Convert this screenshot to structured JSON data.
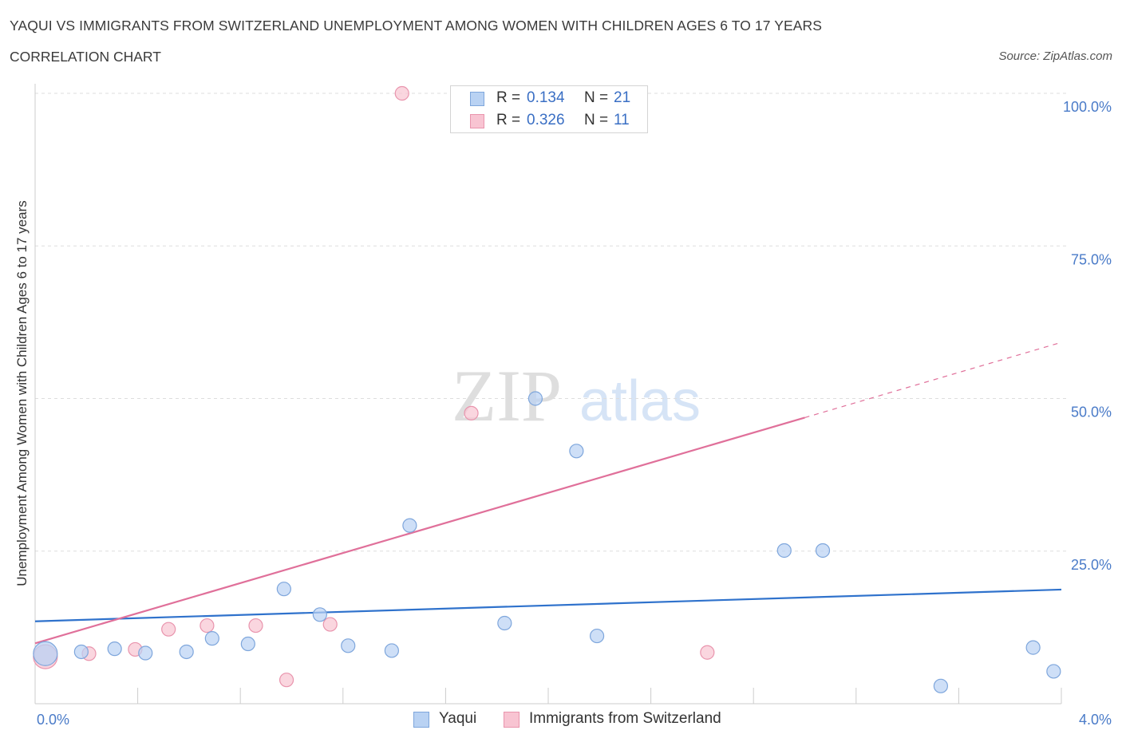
{
  "header": {
    "title": "YAQUI VS IMMIGRANTS FROM SWITZERLAND UNEMPLOYMENT AMONG WOMEN WITH CHILDREN AGES 6 TO 17 YEARS",
    "subtitle": "CORRELATION CHART",
    "source": "Source: ZipAtlas.com"
  },
  "watermark": {
    "zip": "ZIP",
    "atlas": "atlas"
  },
  "stats": [
    {
      "r_label": "R =",
      "r_value": "0.134",
      "n_label": "N =",
      "n_value": "21"
    },
    {
      "r_label": "R =",
      "r_value": "0.326",
      "n_label": "N =",
      "n_value": "11"
    }
  ],
  "colors": {
    "yaqui_fill": "#b9d2f3",
    "yaqui_stroke": "#7ea6dc",
    "yaqui_line": "#2f72cc",
    "swiss_fill": "#f8c4d2",
    "swiss_stroke": "#e994ad",
    "swiss_line": "#e0709a",
    "grid": "#dddddd",
    "axis_label": "#4a7bc8"
  },
  "chart_data": {
    "type": "scatter",
    "title": "YAQUI VS IMMIGRANTS FROM SWITZERLAND UNEMPLOYMENT AMONG WOMEN WITH CHILDREN AGES 6 TO 17 YEARS",
    "subtitle": "CORRELATION CHART",
    "xlabel": "",
    "ylabel": "Unemployment Among Women with Children Ages 6 to 17 years",
    "xlim": [
      0,
      4
    ],
    "ylim": [
      0,
      100
    ],
    "x_tick_labels": [
      "0.0%",
      "4.0%"
    ],
    "y_ticks": [
      25,
      50,
      75,
      100
    ],
    "y_tick_labels": [
      "25.0%",
      "50.0%",
      "75.0%",
      "100.0%"
    ],
    "grid": true,
    "legend_position": "bottom-center",
    "series": [
      {
        "name": "Yaqui",
        "r": 0.134,
        "n": 21,
        "points": [
          [
            0.04,
            8.2,
            "large"
          ],
          [
            0.18,
            8.5
          ],
          [
            0.31,
            9.0
          ],
          [
            0.43,
            8.3
          ],
          [
            0.59,
            8.5
          ],
          [
            0.69,
            10.7
          ],
          [
            0.83,
            9.8
          ],
          [
            0.97,
            18.8
          ],
          [
            1.11,
            14.6
          ],
          [
            1.22,
            9.5
          ],
          [
            1.39,
            8.7
          ],
          [
            1.46,
            29.2
          ],
          [
            1.83,
            13.2
          ],
          [
            1.95,
            50.0
          ],
          [
            2.11,
            41.4
          ],
          [
            2.19,
            11.1
          ],
          [
            2.92,
            25.1
          ],
          [
            3.07,
            25.1
          ],
          [
            3.53,
            2.9
          ],
          [
            3.89,
            9.2
          ],
          [
            3.97,
            5.3
          ]
        ],
        "trend": {
          "x": [
            0,
            4
          ],
          "y": [
            13.5,
            18.7
          ],
          "dashed_from": null
        }
      },
      {
        "name": "Immigrants from Switzerland",
        "r": 0.326,
        "n": 11,
        "points": [
          [
            0.04,
            7.7,
            "large"
          ],
          [
            0.21,
            8.2
          ],
          [
            0.39,
            8.9
          ],
          [
            0.52,
            12.2
          ],
          [
            0.67,
            12.8
          ],
          [
            0.86,
            12.8
          ],
          [
            0.98,
            3.9
          ],
          [
            1.15,
            13.0
          ],
          [
            1.43,
            100.0
          ],
          [
            1.7,
            47.6
          ],
          [
            2.62,
            8.4
          ]
        ],
        "trend": {
          "x": [
            0,
            4
          ],
          "y": [
            9.9,
            59.2
          ],
          "dashed_from": 3.0
        }
      }
    ]
  }
}
